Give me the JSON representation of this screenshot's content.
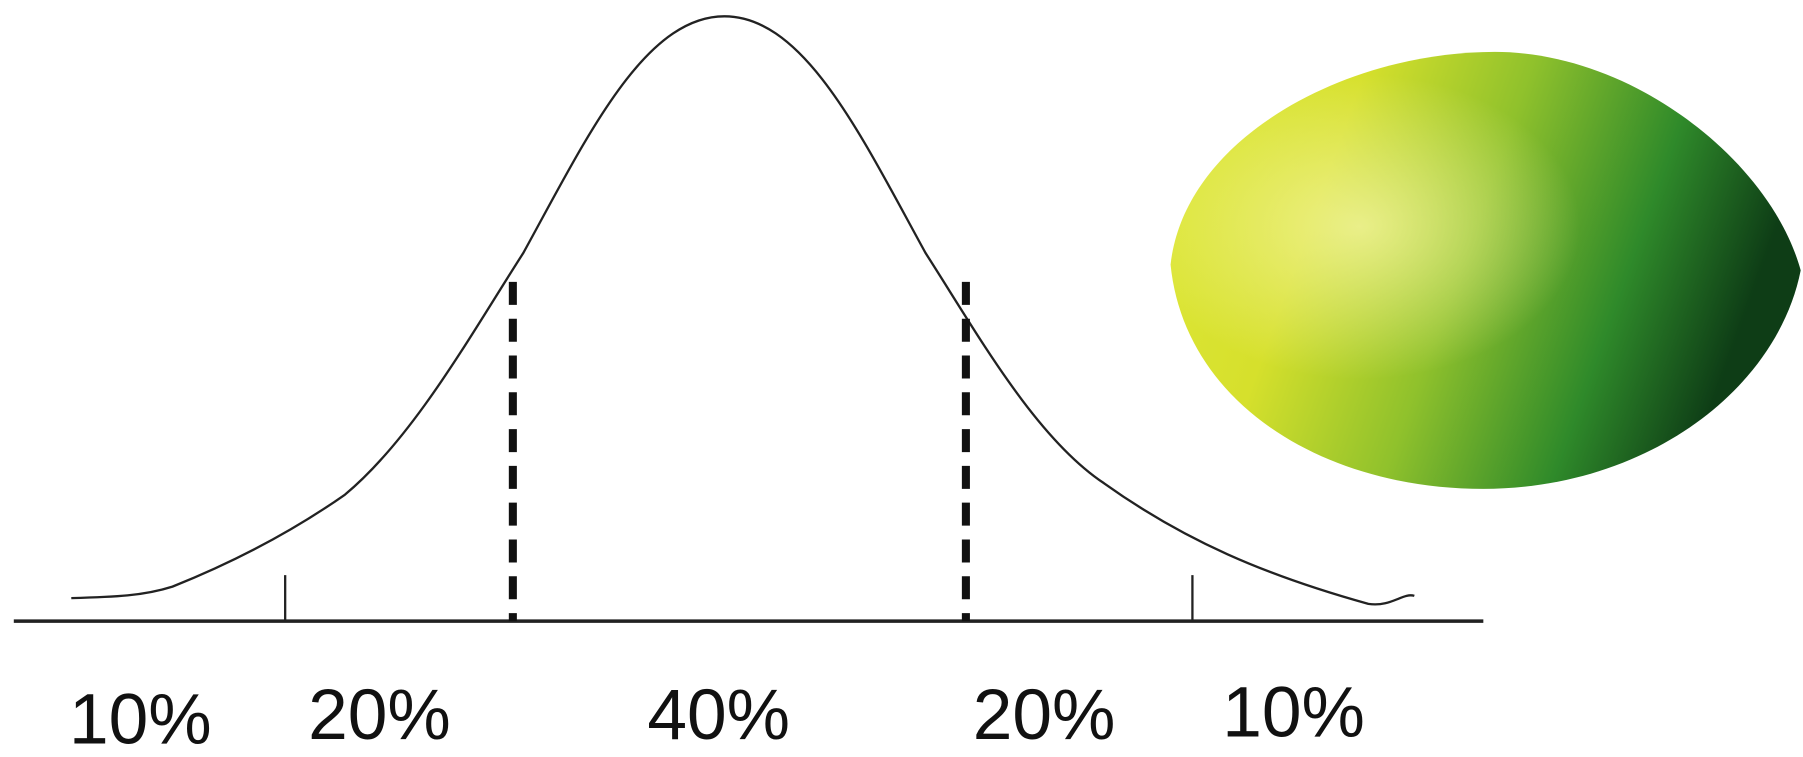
{
  "labels": [
    "10%",
    "20%",
    "40%",
    "20%",
    "10%"
  ]
}
